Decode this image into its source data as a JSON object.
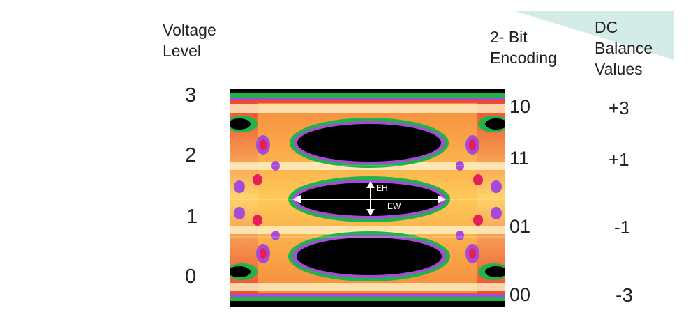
{
  "headers": {
    "voltage_level": [
      "Voltage",
      "Level"
    ],
    "encoding": [
      "2- Bit",
      "Encoding"
    ],
    "dc_balance": [
      "DC",
      "Balance",
      "Values"
    ]
  },
  "voltage_levels": [
    "3",
    "2",
    "1",
    "0"
  ],
  "encodings": [
    "10",
    "11",
    "01",
    "00"
  ],
  "dc_balance_values": [
    "+3",
    "+1",
    "-1",
    "-3"
  ],
  "eye_labels": {
    "height": "EH",
    "width": "EW"
  },
  "colors": {
    "teal_accent": "#d4ece8",
    "eye_background": "#000000",
    "eye_outer_ring": "#22b24c",
    "eye_mid_ring": "#a54bd8",
    "eye_inner_ring": "#e81e5a",
    "eye_trace": "#ffd36a"
  }
}
